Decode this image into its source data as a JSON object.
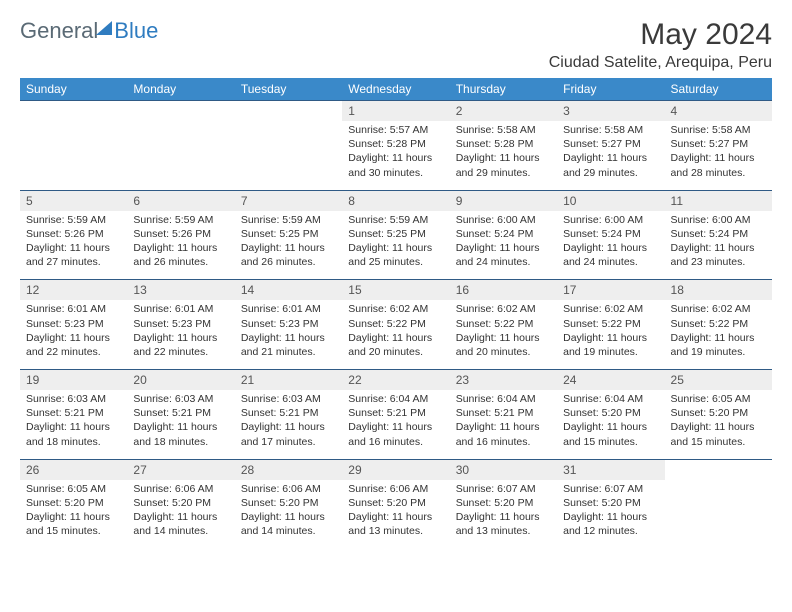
{
  "logo": {
    "text1": "General",
    "text2": "Blue"
  },
  "month_title": "May 2024",
  "location": "Ciudad Satelite, Arequipa, Peru",
  "colors": {
    "header_bg": "#3a89c9",
    "header_text": "#ffffff",
    "daynum_bg": "#eeeeee",
    "border": "#2f5a85",
    "body_text": "#333333"
  },
  "font": {
    "family": "Arial",
    "header_size": 12,
    "cell_size": 10.5,
    "title_size": 30,
    "location_size": 16
  },
  "day_headers": [
    "Sunday",
    "Monday",
    "Tuesday",
    "Wednesday",
    "Thursday",
    "Friday",
    "Saturday"
  ],
  "weeks": [
    {
      "nums": [
        "",
        "",
        "",
        "1",
        "2",
        "3",
        "4"
      ],
      "cells": [
        "",
        "",
        "",
        "Sunrise: 5:57 AM\nSunset: 5:28 PM\nDaylight: 11 hours and 30 minutes.",
        "Sunrise: 5:58 AM\nSunset: 5:28 PM\nDaylight: 11 hours and 29 minutes.",
        "Sunrise: 5:58 AM\nSunset: 5:27 PM\nDaylight: 11 hours and 29 minutes.",
        "Sunrise: 5:58 AM\nSunset: 5:27 PM\nDaylight: 11 hours and 28 minutes."
      ]
    },
    {
      "nums": [
        "5",
        "6",
        "7",
        "8",
        "9",
        "10",
        "11"
      ],
      "cells": [
        "Sunrise: 5:59 AM\nSunset: 5:26 PM\nDaylight: 11 hours and 27 minutes.",
        "Sunrise: 5:59 AM\nSunset: 5:26 PM\nDaylight: 11 hours and 26 minutes.",
        "Sunrise: 5:59 AM\nSunset: 5:25 PM\nDaylight: 11 hours and 26 minutes.",
        "Sunrise: 5:59 AM\nSunset: 5:25 PM\nDaylight: 11 hours and 25 minutes.",
        "Sunrise: 6:00 AM\nSunset: 5:24 PM\nDaylight: 11 hours and 24 minutes.",
        "Sunrise: 6:00 AM\nSunset: 5:24 PM\nDaylight: 11 hours and 24 minutes.",
        "Sunrise: 6:00 AM\nSunset: 5:24 PM\nDaylight: 11 hours and 23 minutes."
      ]
    },
    {
      "nums": [
        "12",
        "13",
        "14",
        "15",
        "16",
        "17",
        "18"
      ],
      "cells": [
        "Sunrise: 6:01 AM\nSunset: 5:23 PM\nDaylight: 11 hours and 22 minutes.",
        "Sunrise: 6:01 AM\nSunset: 5:23 PM\nDaylight: 11 hours and 22 minutes.",
        "Sunrise: 6:01 AM\nSunset: 5:23 PM\nDaylight: 11 hours and 21 minutes.",
        "Sunrise: 6:02 AM\nSunset: 5:22 PM\nDaylight: 11 hours and 20 minutes.",
        "Sunrise: 6:02 AM\nSunset: 5:22 PM\nDaylight: 11 hours and 20 minutes.",
        "Sunrise: 6:02 AM\nSunset: 5:22 PM\nDaylight: 11 hours and 19 minutes.",
        "Sunrise: 6:02 AM\nSunset: 5:22 PM\nDaylight: 11 hours and 19 minutes."
      ]
    },
    {
      "nums": [
        "19",
        "20",
        "21",
        "22",
        "23",
        "24",
        "25"
      ],
      "cells": [
        "Sunrise: 6:03 AM\nSunset: 5:21 PM\nDaylight: 11 hours and 18 minutes.",
        "Sunrise: 6:03 AM\nSunset: 5:21 PM\nDaylight: 11 hours and 18 minutes.",
        "Sunrise: 6:03 AM\nSunset: 5:21 PM\nDaylight: 11 hours and 17 minutes.",
        "Sunrise: 6:04 AM\nSunset: 5:21 PM\nDaylight: 11 hours and 16 minutes.",
        "Sunrise: 6:04 AM\nSunset: 5:21 PM\nDaylight: 11 hours and 16 minutes.",
        "Sunrise: 6:04 AM\nSunset: 5:20 PM\nDaylight: 11 hours and 15 minutes.",
        "Sunrise: 6:05 AM\nSunset: 5:20 PM\nDaylight: 11 hours and 15 minutes."
      ]
    },
    {
      "nums": [
        "26",
        "27",
        "28",
        "29",
        "30",
        "31",
        ""
      ],
      "cells": [
        "Sunrise: 6:05 AM\nSunset: 5:20 PM\nDaylight: 11 hours and 15 minutes.",
        "Sunrise: 6:06 AM\nSunset: 5:20 PM\nDaylight: 11 hours and 14 minutes.",
        "Sunrise: 6:06 AM\nSunset: 5:20 PM\nDaylight: 11 hours and 14 minutes.",
        "Sunrise: 6:06 AM\nSunset: 5:20 PM\nDaylight: 11 hours and 13 minutes.",
        "Sunrise: 6:07 AM\nSunset: 5:20 PM\nDaylight: 11 hours and 13 minutes.",
        "Sunrise: 6:07 AM\nSunset: 5:20 PM\nDaylight: 11 hours and 12 minutes.",
        ""
      ]
    }
  ]
}
